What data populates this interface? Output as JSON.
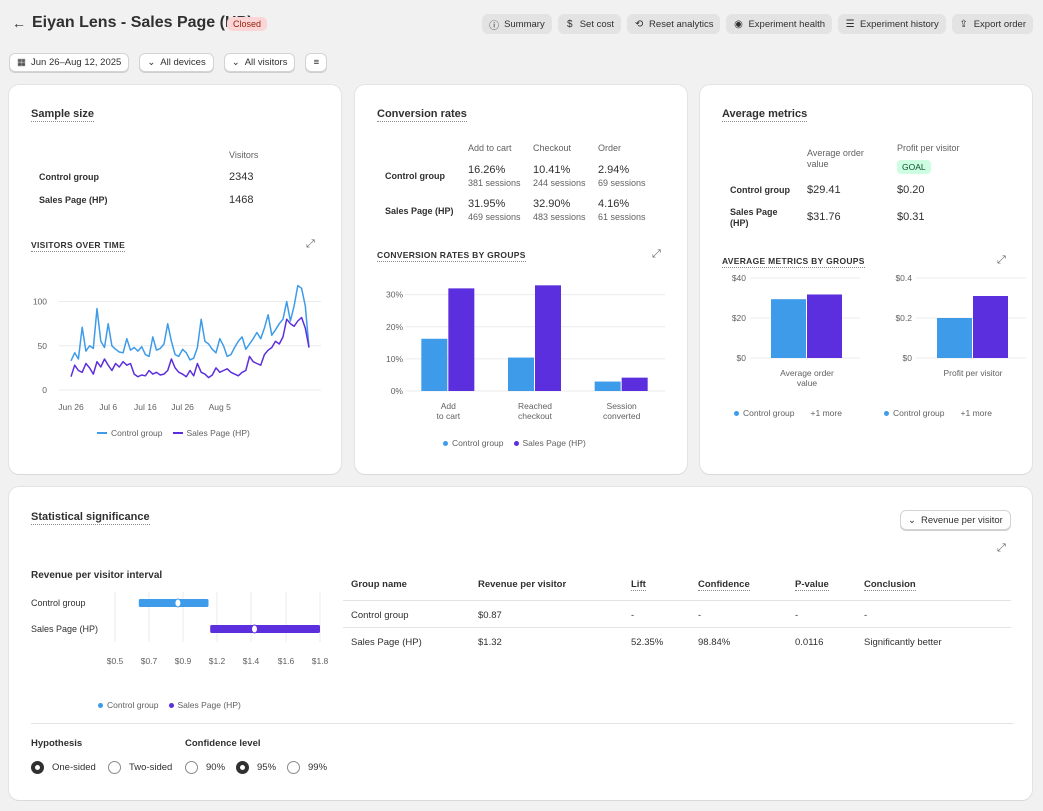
{
  "header": {
    "back_icon": "arrow-left-icon",
    "title": "Eiyan Lens - Sales Page (HP)",
    "status": "Closed",
    "actions": [
      {
        "label": "Summary",
        "icon": "info-icon",
        "glyph": "ⓘ"
      },
      {
        "label": "Set cost",
        "icon": "dollar-circle-icon",
        "glyph": "$"
      },
      {
        "label": "Reset analytics",
        "icon": "refresh-icon",
        "glyph": "⟲"
      },
      {
        "label": "Experiment health",
        "icon": "eye-icon",
        "glyph": "◉"
      },
      {
        "label": "Experiment history",
        "icon": "list-icon",
        "glyph": "☰"
      },
      {
        "label": "Export order",
        "icon": "export-icon",
        "glyph": "⇪"
      }
    ]
  },
  "filters": {
    "date_range": "Jun 26–Aug 12, 2025",
    "devices": "All devices",
    "visitors": "All visitors"
  },
  "colors": {
    "control": "#3d9be9",
    "variant": "#5b2fdd"
  },
  "sample_size": {
    "title": "Sample size",
    "column": "Visitors",
    "rows": [
      {
        "group": "Control group",
        "visitors": "2343"
      },
      {
        "group": "Sales Page (HP)",
        "visitors": "1468"
      }
    ],
    "chart_title": "VISITORS OVER TIME",
    "legend": [
      "Control group",
      "Sales Page (HP)"
    ]
  },
  "conversion": {
    "title": "Conversion rates",
    "columns": [
      "Add to cart",
      "Checkout",
      "Order"
    ],
    "rows": [
      {
        "group": "Control group",
        "cells": [
          [
            "16.26%",
            "381 sessions"
          ],
          [
            "10.41%",
            "244 sessions"
          ],
          [
            "2.94%",
            "69 sessions"
          ]
        ]
      },
      {
        "group": "Sales Page (HP)",
        "cells": [
          [
            "31.95%",
            "469 sessions"
          ],
          [
            "32.90%",
            "483 sessions"
          ],
          [
            "4.16%",
            "61 sessions"
          ]
        ]
      }
    ],
    "chart_title": "CONVERSION RATES BY GROUPS",
    "legend": [
      "Control group",
      "Sales Page (HP)"
    ]
  },
  "average": {
    "title": "Average metrics",
    "col1": "Average order value",
    "col2": "Profit per visitor",
    "goal": "GOAL",
    "rows": [
      {
        "group": "Control group",
        "aov": "$29.41",
        "ppv": "$0.20"
      },
      {
        "group": "Sales Page (HP)",
        "aov": "$31.76",
        "ppv": "$0.31"
      }
    ],
    "chart_title": "AVERAGE METRICS BY GROUPS",
    "legend_label": "Control group",
    "legend_more": "+1 more"
  },
  "significance": {
    "title": "Statistical significance",
    "dropdown": "Revenue per visitor",
    "interval_title": "Revenue per visitor interval",
    "legend": [
      "Control group",
      "Sales Page (HP)"
    ],
    "table": {
      "headers": [
        "Group name",
        "Revenue per visitor",
        "Lift",
        "Confidence",
        "P-value",
        "Conclusion"
      ],
      "rows": [
        [
          "Control group",
          "$0.87",
          "-",
          "-",
          "-",
          "-"
        ],
        [
          "Sales Page (HP)",
          "$1.32",
          "52.35%",
          "98.84%",
          "0.0116",
          "Significantly better"
        ]
      ]
    },
    "hypothesis": {
      "label": "Hypothesis",
      "options": [
        "One-sided",
        "Two-sided"
      ],
      "selected": "One-sided"
    },
    "confidence": {
      "label": "Confidence level",
      "options": [
        "90%",
        "95%",
        "99%"
      ],
      "selected": "95%"
    }
  },
  "chart_data": [
    {
      "type": "line",
      "title": "VISITORS OVER TIME",
      "x_ticks": [
        "Jun 26",
        "Jul 6",
        "Jul 16",
        "Jul 26",
        "Aug 5"
      ],
      "y_ticks": [
        0,
        50,
        100
      ],
      "ylim": [
        0,
        130
      ],
      "x_start": "2025-06-26",
      "series": [
        {
          "name": "Control group",
          "values": [
            33,
            42,
            35,
            71,
            44,
            50,
            47,
            92,
            55,
            48,
            75,
            50,
            46,
            43,
            42,
            58,
            45,
            48,
            44,
            49,
            40,
            38,
            60,
            45,
            47,
            52,
            75,
            55,
            40,
            38,
            46,
            42,
            34,
            36,
            48,
            80,
            55,
            52,
            46,
            42,
            58,
            50,
            38,
            40,
            48,
            55,
            60,
            46,
            52,
            58,
            65,
            58,
            70,
            85,
            62,
            68,
            75,
            80,
            100,
            78,
            95,
            118,
            115,
            95,
            48
          ]
        },
        {
          "name": "Sales Page (HP)",
          "values": [
            15,
            28,
            22,
            20,
            30,
            25,
            18,
            32,
            26,
            35,
            28,
            22,
            30,
            26,
            32,
            28,
            30,
            18,
            15,
            17,
            16,
            22,
            18,
            20,
            17,
            18,
            22,
            35,
            25,
            20,
            18,
            15,
            22,
            16,
            30,
            20,
            18,
            14,
            17,
            25,
            20,
            22,
            24,
            20,
            18,
            16,
            20,
            22,
            38,
            32,
            30,
            28,
            40,
            45,
            48,
            55,
            52,
            60,
            80,
            75,
            72,
            78,
            82,
            70,
            48
          ]
        }
      ]
    },
    {
      "type": "bar",
      "title": "CONVERSION RATES BY GROUPS",
      "categories": [
        "Add to cart",
        "Reached checkout",
        "Session converted"
      ],
      "y_ticks": [
        "0%",
        "10%",
        "20%",
        "30%"
      ],
      "ylim": [
        0,
        33
      ],
      "series": [
        {
          "name": "Control group",
          "values": [
            16.26,
            10.41,
            2.94
          ]
        },
        {
          "name": "Sales Page (HP)",
          "values": [
            31.95,
            32.9,
            4.16
          ]
        }
      ]
    },
    {
      "type": "bar",
      "title": "Average order value",
      "categories": [
        "Average order value"
      ],
      "y_ticks": [
        "$0",
        "$20",
        "$40"
      ],
      "ylim": [
        0,
        40
      ],
      "series": [
        {
          "name": "Control group",
          "values": [
            29.41
          ]
        },
        {
          "name": "Sales Page (HP)",
          "values": [
            31.76
          ]
        }
      ]
    },
    {
      "type": "bar",
      "title": "Profit per visitor",
      "categories": [
        "Profit per visitor"
      ],
      "y_ticks": [
        "$0",
        "$0.2",
        "$0.4"
      ],
      "ylim": [
        0,
        0.4
      ],
      "series": [
        {
          "name": "Control group",
          "values": [
            0.2
          ]
        },
        {
          "name": "Sales Page (HP)",
          "values": [
            0.31
          ]
        }
      ]
    },
    {
      "type": "scatter",
      "title": "Revenue per visitor interval",
      "x_ticks": [
        "$0.5",
        "$0.7",
        "$0.9",
        "$1.2",
        "$1.4",
        "$1.6",
        "$1.8"
      ],
      "series": [
        {
          "name": "Control group",
          "low": 0.64,
          "mid": 0.87,
          "high": 1.05
        },
        {
          "name": "Sales Page (HP)",
          "low": 1.06,
          "mid": 1.32,
          "high": 1.7
        }
      ]
    }
  ]
}
